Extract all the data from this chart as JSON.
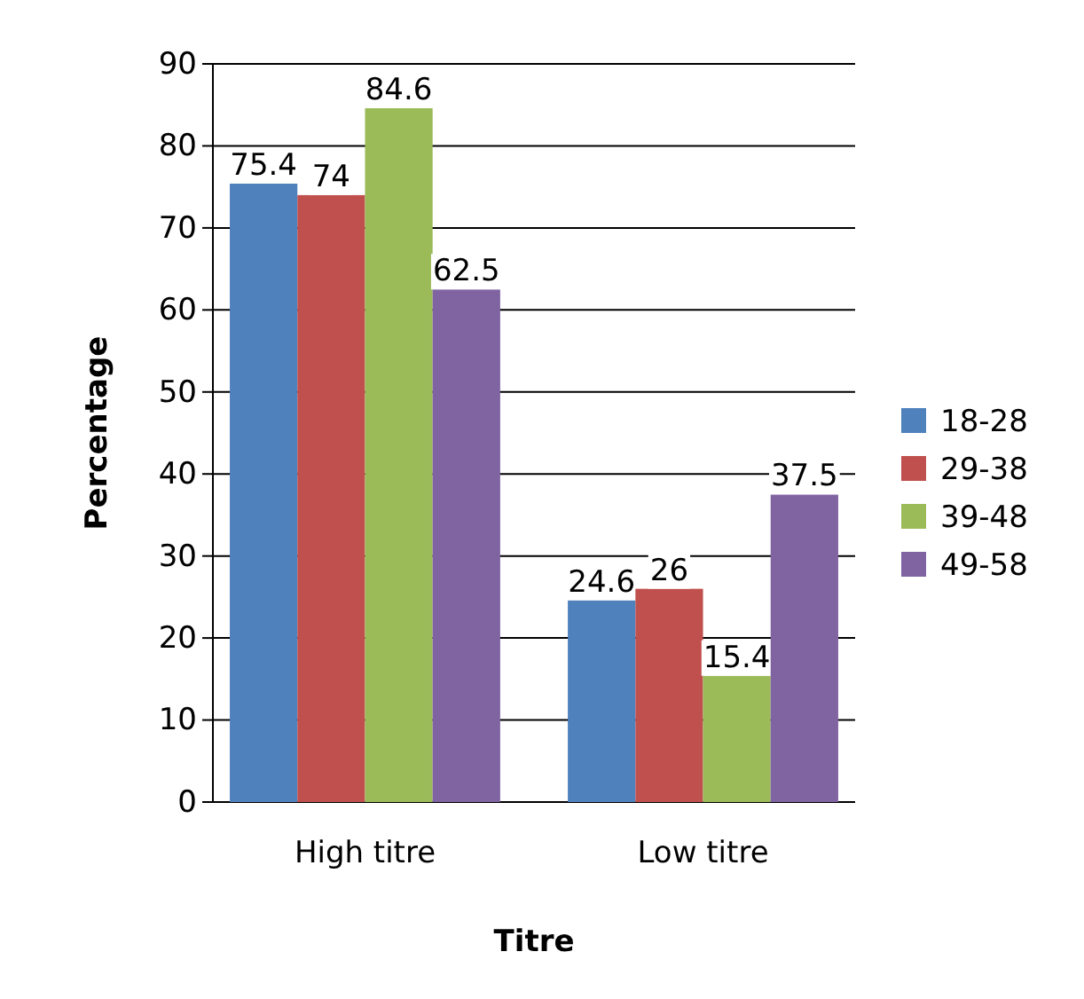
{
  "chart_data": {
    "type": "bar",
    "xlabel": "Titre",
    "ylabel": "Percentage",
    "categories": [
      "High titre",
      "Low titre"
    ],
    "series": [
      {
        "name": "18-28",
        "color": "#4f81bd",
        "values": [
          75.4,
          24.6
        ]
      },
      {
        "name": "29-38",
        "color": "#c0504d",
        "values": [
          74,
          26
        ]
      },
      {
        "name": "39-48",
        "color": "#9bbb59",
        "values": [
          84.6,
          15.4
        ]
      },
      {
        "name": "49-58",
        "color": "#8064a2",
        "values": [
          62.5,
          37.5
        ]
      }
    ],
    "ylim": [
      0,
      90
    ],
    "yticks": [
      0,
      10,
      20,
      30,
      40,
      50,
      60,
      70,
      80,
      90
    ],
    "grid": "y",
    "legend": "right",
    "data_labels": true
  }
}
